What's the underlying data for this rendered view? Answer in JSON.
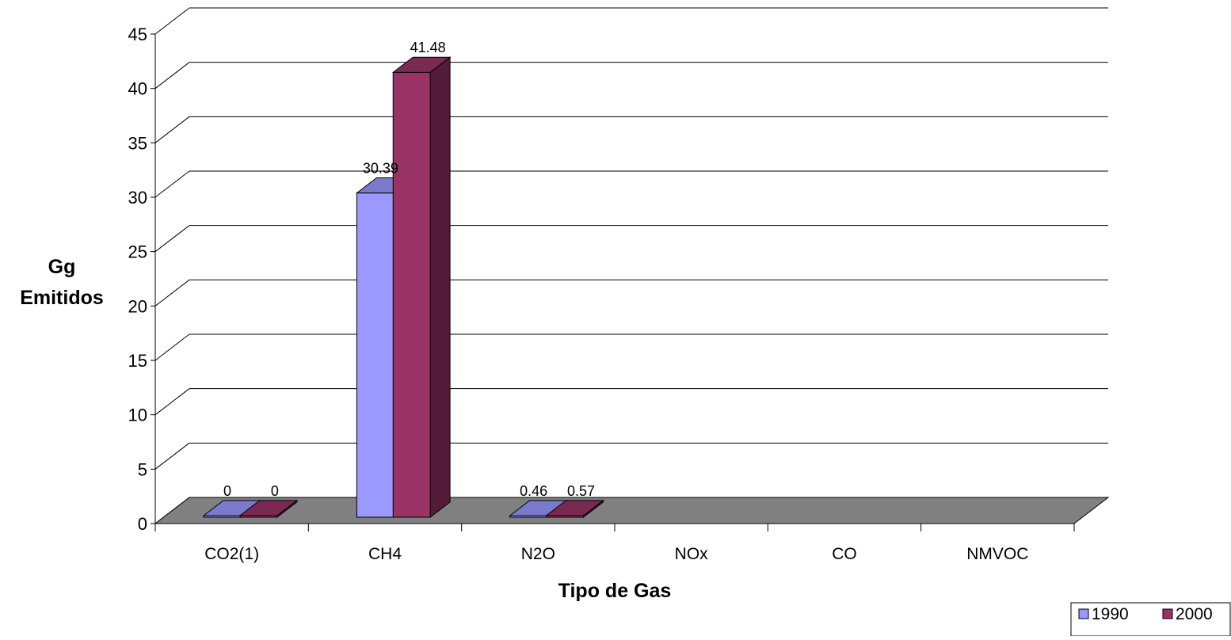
{
  "chart_data": {
    "type": "bar",
    "style": "3d-clustered",
    "title": "",
    "ylabel_lines": [
      "Gg",
      "Emitidos"
    ],
    "xlabel": "Tipo de Gas",
    "ylim": [
      0,
      45
    ],
    "ytick_step": 5,
    "categories": [
      "CO2(1)",
      "CH4",
      "N2O",
      "NOx",
      "CO",
      "NMVOC"
    ],
    "series": [
      {
        "name": "1990",
        "color": "#9999ff",
        "values": [
          0,
          30.39,
          0.46,
          null,
          null,
          null
        ],
        "labels": [
          "0",
          "30.39",
          "0.46",
          "",
          "",
          ""
        ]
      },
      {
        "name": "2000",
        "color": "#993366",
        "values": [
          0,
          41.48,
          0.57,
          null,
          null,
          null
        ],
        "labels": [
          "0",
          "41.48",
          "0.57",
          "",
          "",
          ""
        ]
      }
    ],
    "grid": true,
    "floor_color": "#808080",
    "legend": "bottom-right"
  }
}
